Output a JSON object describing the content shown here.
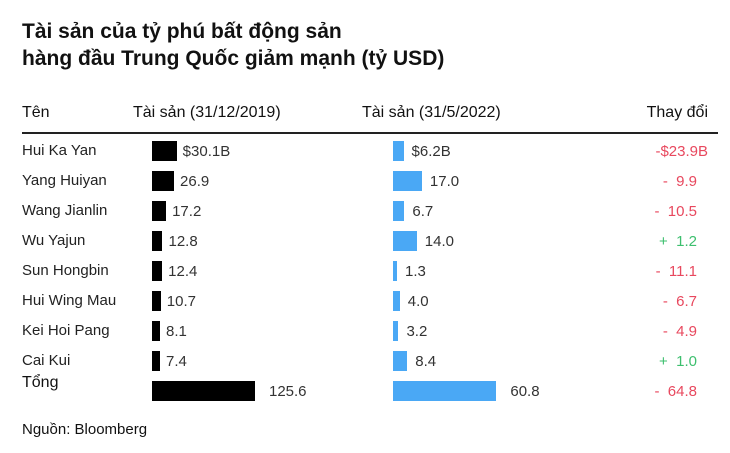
{
  "chart_data": {
    "type": "table",
    "title_lines": [
      "Tài sản của tỷ phú bất động sản",
      "hàng đầu Trung Quốc giảm mạnh (tỷ USD)"
    ],
    "columns": [
      "Tên",
      "Tài sản (31/12/2019)",
      "Tài sản (31/5/2022)",
      "Thay đổi"
    ],
    "rows": [
      {
        "name": "Hui Ka Yan",
        "v2019": 30.1,
        "l2019": "$30.1B",
        "v2022": 6.2,
        "l2022": "$6.2B",
        "change": "-$23.9B",
        "dir": "down"
      },
      {
        "name": "Yang Huiyan",
        "v2019": 26.9,
        "l2019": "26.9",
        "v2022": 17.0,
        "l2022": "17.0",
        "change": "-  9.9",
        "dir": "down"
      },
      {
        "name": "Wang Jianlin",
        "v2019": 17.2,
        "l2019": "17.2",
        "v2022": 6.7,
        "l2022": "6.7",
        "change": "-  10.5",
        "dir": "down"
      },
      {
        "name": "Wu Yajun",
        "v2019": 12.8,
        "l2019": "12.8",
        "v2022": 14.0,
        "l2022": "14.0",
        "change": "+  1.2",
        "dir": "up"
      },
      {
        "name": "Sun Hongbin",
        "v2019": 12.4,
        "l2019": "12.4",
        "v2022": 1.3,
        "l2022": "1.3",
        "change": "-  11.1",
        "dir": "down"
      },
      {
        "name": "Hui Wing Mau",
        "v2019": 10.7,
        "l2019": "10.7",
        "v2022": 4.0,
        "l2022": "4.0",
        "change": "-  6.7",
        "dir": "down"
      },
      {
        "name": "Kei Hoi Pang",
        "v2019": 8.1,
        "l2019": "8.1",
        "v2022": 3.2,
        "l2022": "3.2",
        "change": "-  4.9",
        "dir": "down"
      },
      {
        "name": "Cai Kui",
        "v2019": 7.4,
        "l2019": "7.4",
        "v2022": 8.4,
        "l2022": "8.4",
        "change": "+  1.0",
        "dir": "up"
      }
    ],
    "total": {
      "name": "Tổng",
      "v2019": 125.6,
      "l2019": "125.6",
      "v2022": 60.8,
      "l2022": "60.8",
      "change": "-  64.8",
      "dir": "down"
    },
    "colors": {
      "bar2019": "#000000",
      "bar2022": "#4aa8f5",
      "down": "#e8485e",
      "up": "#3dbf6e"
    }
  },
  "source": "Nguồn: Bloomberg"
}
